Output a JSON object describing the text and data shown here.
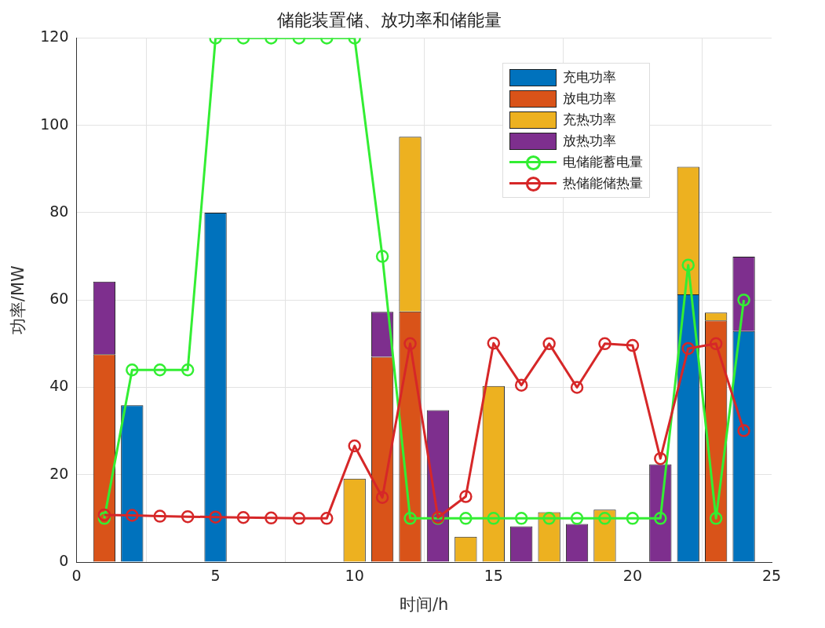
{
  "chart_data": {
    "type": "bar",
    "title": "储能装置储、放功率和储能量",
    "xlabel": "时间/h",
    "ylabel": "功率/MW",
    "stacked": true,
    "grid": true,
    "legend": "top right",
    "x": [
      1,
      2,
      3,
      4,
      5,
      6,
      7,
      8,
      9,
      10,
      11,
      12,
      13,
      14,
      15,
      16,
      17,
      18,
      19,
      20,
      21,
      22,
      23,
      24
    ],
    "xlim": [
      0,
      25
    ],
    "xticks": [
      0,
      5,
      10,
      15,
      20,
      25
    ],
    "ylim": [
      0,
      120
    ],
    "yticks": [
      0,
      20,
      40,
      60,
      80,
      100,
      120
    ],
    "series": [
      {
        "name": "充电功率",
        "color": "#0072bd",
        "values": [
          null,
          35.9,
          null,
          null,
          80,
          null,
          null,
          null,
          null,
          null,
          null,
          null,
          null,
          null,
          null,
          null,
          null,
          null,
          null,
          null,
          null,
          61.3,
          null,
          52.9
        ]
      },
      {
        "name": "放电功率",
        "color": "#d95319",
        "values": [
          47.6,
          null,
          null,
          null,
          null,
          null,
          null,
          null,
          null,
          null,
          47,
          57.4,
          null,
          null,
          null,
          null,
          null,
          null,
          null,
          null,
          null,
          null,
          55.3,
          null
        ]
      },
      {
        "name": "充热功率",
        "color": "#edb120",
        "values": [
          null,
          null,
          null,
          null,
          null,
          null,
          null,
          null,
          null,
          19.1,
          null,
          40,
          null,
          5.8,
          40.3,
          null,
          11.4,
          null,
          12,
          null,
          null,
          29.2,
          1.8,
          null
        ]
      },
      {
        "name": "放热功率",
        "color": "#7e2f8e",
        "values": [
          16.6,
          null,
          null,
          null,
          null,
          null,
          null,
          null,
          null,
          null,
          10.3,
          null,
          34.8,
          null,
          null,
          8.2,
          null,
          8.7,
          null,
          null,
          22.4,
          null,
          null,
          17
        ]
      },
      {
        "name": "电储能蓄电量",
        "type": "line",
        "marker": "circle",
        "color": "#33ee33",
        "values": [
          10,
          44,
          44,
          44,
          120,
          120,
          120,
          120,
          120,
          120,
          70,
          10,
          10,
          10,
          10,
          10,
          10,
          10,
          10,
          10,
          10,
          68,
          10,
          60
        ]
      },
      {
        "name": "热储能储热量",
        "type": "line",
        "marker": "circle",
        "color": "#d62728",
        "values": [
          10.8,
          10.7,
          10.5,
          10.4,
          10.3,
          10.2,
          10.1,
          10,
          10,
          26.6,
          14.8,
          50,
          10.2,
          15,
          50.1,
          40.5,
          50,
          40,
          50,
          49.6,
          23.7,
          48.9,
          50,
          30.1
        ]
      }
    ]
  }
}
